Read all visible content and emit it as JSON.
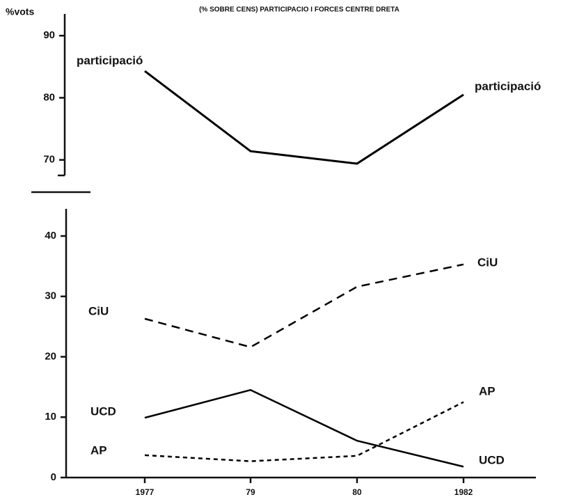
{
  "chart_data": [
    {
      "type": "line",
      "title": "(% SOBRE CENS) PARTICIPACIO I FORCES CENTRE DRETA",
      "y_label": "%vots",
      "ylim": [
        67.5,
        93.5
      ],
      "yticks": [
        70,
        80,
        90
      ],
      "series": [
        {
          "name": "participació",
          "color": "#000000",
          "style": "solid",
          "values": [
            84.3,
            71.4,
            69.4,
            80.5
          ]
        }
      ]
    },
    {
      "type": "line",
      "categories": [
        "1977",
        "79",
        "80",
        "1982"
      ],
      "ylim": [
        0,
        44.5
      ],
      "yticks": [
        0,
        10,
        20,
        30,
        40
      ],
      "series": [
        {
          "name": "CiU",
          "color": "#000000",
          "style": "dashed",
          "values": [
            26.3,
            21.6,
            31.6,
            35.3
          ]
        },
        {
          "name": "UCD",
          "color": "#000000",
          "style": "solid",
          "values": [
            9.9,
            14.5,
            6.1,
            1.8
          ]
        },
        {
          "name": "AP",
          "color": "#000000",
          "style": "dotted",
          "values": [
            3.7,
            2.7,
            3.6,
            12.5
          ]
        }
      ]
    }
  ]
}
